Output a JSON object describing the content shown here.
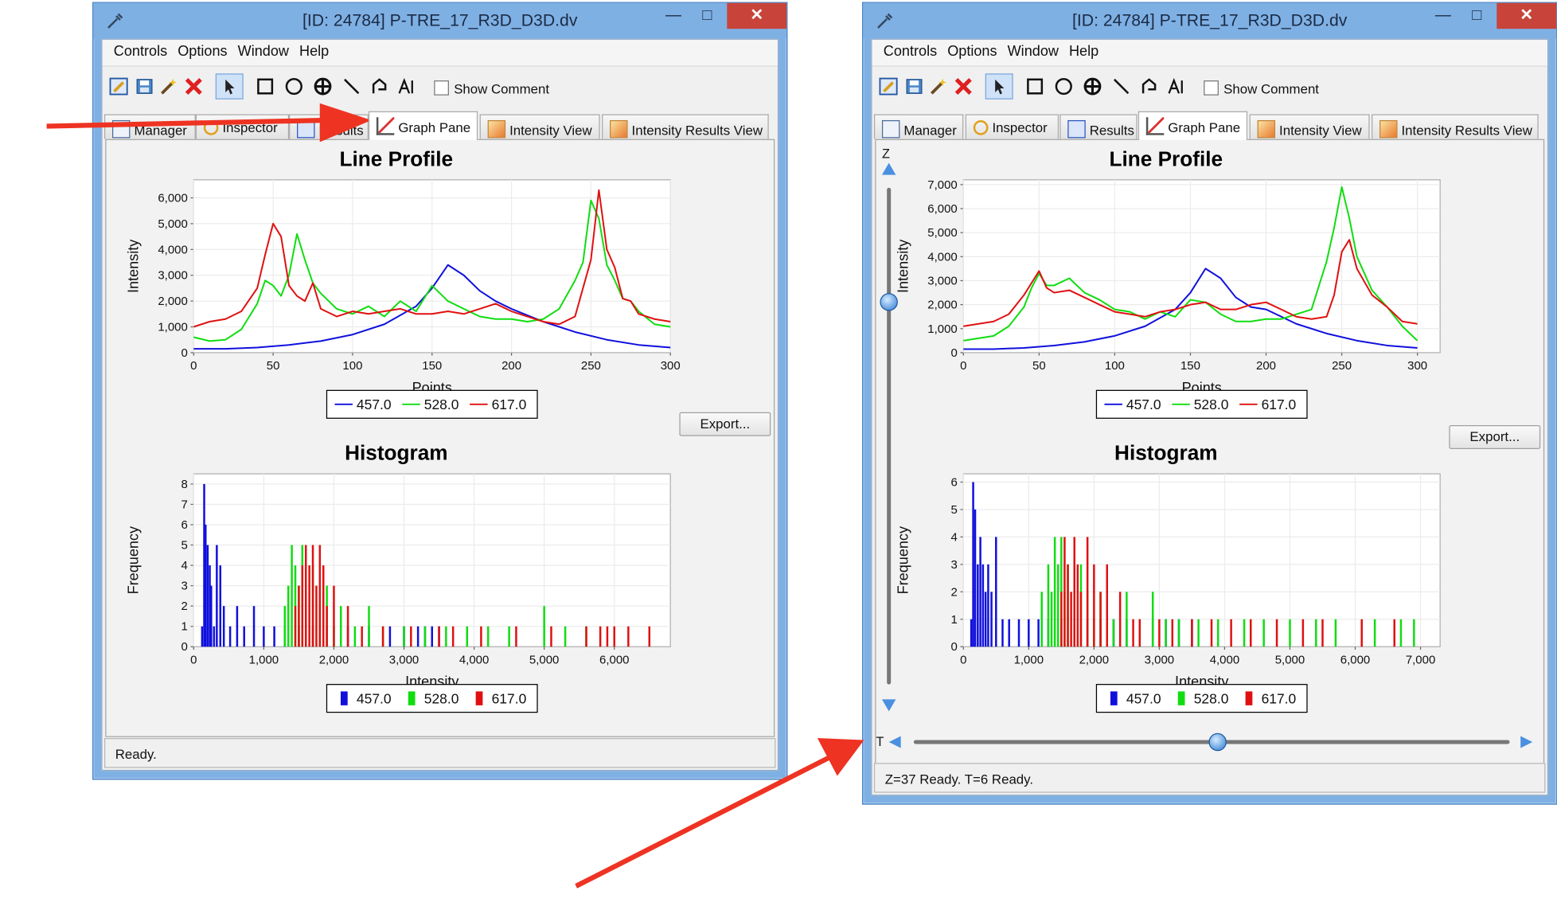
{
  "windows": [
    {
      "id": "left",
      "title": "[ID: 24784] P-TRE_17_R3D_D3D.dv",
      "menu": [
        "Controls",
        "Options",
        "Window",
        "Help"
      ],
      "show_comment_label": "Show Comment",
      "tabs": [
        {
          "label": "Manager",
          "active": false,
          "obscured": true
        },
        {
          "label": "Inspector",
          "active": false,
          "obscured": true
        },
        {
          "label": "Results",
          "active": false,
          "obscured": true
        },
        {
          "label": "Graph Pane",
          "active": true
        },
        {
          "label": "Intensity View",
          "active": false
        },
        {
          "label": "Intensity Results View",
          "active": false
        }
      ],
      "export_label": "Export...",
      "status": "Ready."
    },
    {
      "id": "right",
      "title": "[ID: 24784] P-TRE_17_R3D_D3D.dv",
      "menu": [
        "Controls",
        "Options",
        "Window",
        "Help"
      ],
      "show_comment_label": "Show Comment",
      "tabs": [
        {
          "label": "Manager",
          "active": false
        },
        {
          "label": "Inspector",
          "active": false
        },
        {
          "label": "Results",
          "active": false
        },
        {
          "label": "Graph Pane",
          "active": true
        },
        {
          "label": "Intensity View",
          "active": false
        },
        {
          "label": "Intensity Results View",
          "active": false
        }
      ],
      "export_label": "Export...",
      "z_label": "Z",
      "t_label": "T",
      "z_slider_fraction": 0.23,
      "t_slider_fraction": 0.51,
      "status": "Z=37  Ready. T=6 Ready."
    }
  ],
  "colors": {
    "series_457": "#1010dd",
    "series_528": "#10dd10",
    "series_617": "#e01010",
    "window_frame": "#7fb0e4",
    "close_button": "#c8443a",
    "annotation_arrow": "#ee3322"
  },
  "chart_data": [
    {
      "window": "left",
      "type": "line",
      "title": "Line Profile",
      "xlabel": "Points",
      "ylabel": "Intensity",
      "xlim": [
        0,
        300
      ],
      "ylim": [
        0,
        6700
      ],
      "xticks": [
        0,
        50,
        100,
        150,
        200,
        250,
        300
      ],
      "yticks": [
        0,
        1000,
        2000,
        3000,
        4000,
        5000,
        6000
      ],
      "xtick_labels": [
        "0",
        "50",
        "100",
        "150",
        "200",
        "250",
        "300"
      ],
      "ytick_labels": [
        "0",
        "1,000",
        "2,000",
        "3,000",
        "4,000",
        "5,000",
        "6,000"
      ],
      "legend_placement": "bottom",
      "series": [
        {
          "name": "457.0",
          "color": "#1010dd",
          "x": [
            0,
            20,
            40,
            60,
            80,
            100,
            120,
            140,
            150,
            160,
            170,
            180,
            190,
            200,
            220,
            240,
            260,
            280,
            300
          ],
          "y": [
            150,
            150,
            200,
            300,
            450,
            700,
            1100,
            1800,
            2500,
            3400,
            3000,
            2400,
            2000,
            1700,
            1200,
            800,
            500,
            300,
            200
          ]
        },
        {
          "name": "528.0",
          "color": "#10dd10",
          "x": [
            0,
            10,
            20,
            30,
            40,
            45,
            50,
            55,
            60,
            65,
            70,
            75,
            80,
            90,
            100,
            110,
            120,
            130,
            140,
            150,
            160,
            170,
            180,
            190,
            200,
            210,
            220,
            230,
            240,
            245,
            250,
            255,
            260,
            265,
            270,
            275,
            280,
            290,
            300
          ],
          "y": [
            600,
            450,
            500,
            900,
            1900,
            2800,
            2600,
            2200,
            3000,
            4600,
            3600,
            2700,
            2300,
            1700,
            1500,
            1800,
            1400,
            2000,
            1600,
            2600,
            2000,
            1700,
            1400,
            1300,
            1300,
            1200,
            1300,
            1700,
            2800,
            3500,
            5900,
            5200,
            3400,
            2800,
            2100,
            2000,
            1600,
            1100,
            1000
          ]
        },
        {
          "name": "617.0",
          "color": "#e01010",
          "x": [
            0,
            10,
            20,
            30,
            40,
            45,
            50,
            55,
            60,
            65,
            70,
            75,
            80,
            90,
            100,
            110,
            120,
            130,
            140,
            150,
            160,
            170,
            180,
            190,
            200,
            210,
            220,
            230,
            240,
            250,
            255,
            260,
            265,
            270,
            275,
            280,
            290,
            300
          ],
          "y": [
            1000,
            1200,
            1300,
            1600,
            2500,
            3800,
            5000,
            4500,
            2600,
            2200,
            2000,
            2700,
            1700,
            1400,
            1600,
            1500,
            1600,
            1700,
            1500,
            1500,
            1600,
            1500,
            1700,
            1900,
            1600,
            1400,
            1200,
            1100,
            1400,
            3600,
            6300,
            4000,
            3300,
            2100,
            2000,
            1500,
            1300,
            1200
          ]
        }
      ]
    },
    {
      "window": "left",
      "type": "bar",
      "title": "Histogram",
      "xlabel": "Intensity",
      "ylabel": "Frequency",
      "xlim": [
        0,
        6800
      ],
      "ylim": [
        0,
        8.5
      ],
      "xticks": [
        0,
        1000,
        2000,
        3000,
        4000,
        5000,
        6000
      ],
      "yticks": [
        0,
        1,
        2,
        3,
        4,
        5,
        6,
        7,
        8
      ],
      "xtick_labels": [
        "0",
        "1,000",
        "2,000",
        "3,000",
        "4,000",
        "5,000",
        "6,000"
      ],
      "ytick_labels": [
        "0",
        "1",
        "2",
        "3",
        "4",
        "5",
        "6",
        "7",
        "8"
      ],
      "legend_placement": "bottom",
      "series": [
        {
          "name": "457.0",
          "color": "#1010dd",
          "x": [
            120,
            150,
            170,
            200,
            230,
            250,
            290,
            330,
            380,
            430,
            520,
            620,
            720,
            860,
            1000,
            1150,
            1300,
            1500,
            1700,
            1900,
            2200,
            2500,
            2800,
            3000,
            3200,
            3300,
            3400,
            3500
          ],
          "y": [
            1,
            8,
            6,
            5,
            4,
            3,
            1,
            5,
            4,
            2,
            1,
            2,
            1,
            2,
            1,
            1,
            1,
            1,
            1,
            1,
            1,
            1,
            1,
            1,
            1,
            1,
            1,
            1
          ]
        },
        {
          "name": "528.0",
          "color": "#10dd10",
          "x": [
            1300,
            1350,
            1400,
            1450,
            1500,
            1550,
            1600,
            1700,
            1800,
            1900,
            2000,
            2100,
            2300,
            2500,
            2700,
            3000,
            3300,
            3600,
            3900,
            4200,
            4500,
            5000,
            5300,
            5600
          ],
          "y": [
            2,
            3,
            5,
            4,
            3,
            5,
            3,
            4,
            2,
            3,
            1,
            2,
            1,
            2,
            1,
            1,
            1,
            1,
            1,
            1,
            1,
            2,
            1,
            1
          ]
        },
        {
          "name": "617.0",
          "color": "#e01010",
          "x": [
            1450,
            1500,
            1550,
            1600,
            1650,
            1700,
            1750,
            1800,
            1850,
            1900,
            2000,
            2200,
            2400,
            2700,
            3100,
            3500,
            3700,
            4100,
            4600,
            5100,
            5600,
            5800,
            5900,
            6000,
            6200,
            6500
          ],
          "y": [
            2,
            3,
            4,
            5,
            4,
            5,
            3,
            5,
            4,
            2,
            3,
            2,
            1,
            1,
            1,
            1,
            1,
            1,
            1,
            1,
            1,
            1,
            1,
            1,
            1,
            1
          ]
        }
      ]
    },
    {
      "window": "right",
      "type": "line",
      "title": "Line Profile",
      "xlabel": "Points",
      "ylabel": "Intensity",
      "xlim": [
        0,
        315
      ],
      "ylim": [
        0,
        7200
      ],
      "xticks": [
        0,
        50,
        100,
        150,
        200,
        250,
        300
      ],
      "yticks": [
        0,
        1000,
        2000,
        3000,
        4000,
        5000,
        6000,
        7000
      ],
      "xtick_labels": [
        "0",
        "50",
        "100",
        "150",
        "200",
        "250",
        "300"
      ],
      "ytick_labels": [
        "0",
        "1,000",
        "2,000",
        "3,000",
        "4,000",
        "5,000",
        "6,000",
        "7,000"
      ],
      "legend_placement": "bottom",
      "series": [
        {
          "name": "457.0",
          "color": "#1010dd",
          "x": [
            0,
            20,
            40,
            60,
            80,
            100,
            120,
            140,
            150,
            160,
            170,
            180,
            190,
            200,
            220,
            240,
            260,
            280,
            300
          ],
          "y": [
            150,
            150,
            200,
            300,
            450,
            700,
            1100,
            1800,
            2500,
            3500,
            3100,
            2300,
            1900,
            1800,
            1200,
            800,
            500,
            300,
            200
          ]
        },
        {
          "name": "528.0",
          "color": "#10dd10",
          "x": [
            0,
            10,
            20,
            30,
            40,
            45,
            50,
            55,
            60,
            70,
            80,
            90,
            100,
            110,
            120,
            130,
            140,
            150,
            160,
            170,
            180,
            190,
            200,
            210,
            220,
            230,
            240,
            245,
            250,
            255,
            260,
            270,
            280,
            290,
            300
          ],
          "y": [
            500,
            600,
            700,
            1100,
            1900,
            2700,
            3300,
            2800,
            2800,
            3100,
            2500,
            2200,
            1800,
            1700,
            1400,
            1700,
            1500,
            2200,
            2100,
            1600,
            1300,
            1300,
            1400,
            1400,
            1600,
            1800,
            3800,
            5200,
            6900,
            5600,
            4000,
            2600,
            1900,
            1100,
            500
          ]
        },
        {
          "name": "617.0",
          "color": "#e01010",
          "x": [
            0,
            10,
            20,
            30,
            40,
            45,
            50,
            55,
            60,
            70,
            80,
            90,
            100,
            110,
            120,
            130,
            140,
            150,
            160,
            170,
            180,
            190,
            200,
            210,
            220,
            230,
            240,
            245,
            250,
            255,
            260,
            270,
            280,
            290,
            300
          ],
          "y": [
            1100,
            1200,
            1300,
            1600,
            2400,
            2900,
            3400,
            2700,
            2500,
            2600,
            2300,
            2000,
            1700,
            1600,
            1500,
            1700,
            1800,
            2000,
            2100,
            1800,
            1800,
            2000,
            2100,
            1800,
            1500,
            1400,
            1500,
            2400,
            4200,
            4700,
            3500,
            2400,
            1900,
            1300,
            1200
          ]
        }
      ]
    },
    {
      "window": "right",
      "type": "bar",
      "title": "Histogram",
      "xlabel": "Intensity",
      "ylabel": "Frequency",
      "xlim": [
        0,
        7300
      ],
      "ylim": [
        0,
        6.3
      ],
      "xticks": [
        0,
        1000,
        2000,
        3000,
        4000,
        5000,
        6000,
        7000
      ],
      "yticks": [
        0,
        1,
        2,
        3,
        4,
        5,
        6
      ],
      "xtick_labels": [
        "0",
        "1,000",
        "2,000",
        "3,000",
        "4,000",
        "5,000",
        "6,000",
        "7,000"
      ],
      "ytick_labels": [
        "0",
        "1",
        "2",
        "3",
        "4",
        "5",
        "6"
      ],
      "legend_placement": "bottom",
      "series": [
        {
          "name": "457.0",
          "color": "#1010dd",
          "x": [
            120,
            150,
            180,
            220,
            260,
            300,
            340,
            380,
            430,
            500,
            600,
            700,
            850,
            1000,
            1150,
            1300,
            1500,
            1700,
            1900,
            2100,
            2300,
            2500,
            2700,
            2900,
            3100,
            3300,
            3500
          ],
          "y": [
            1,
            6,
            5,
            3,
            4,
            3,
            2,
            3,
            2,
            4,
            1,
            1,
            1,
            1,
            1,
            1,
            1,
            1,
            1,
            1,
            1,
            1,
            1,
            1,
            1,
            1,
            1
          ]
        },
        {
          "name": "528.0",
          "color": "#10dd10",
          "x": [
            1200,
            1300,
            1350,
            1400,
            1450,
            1500,
            1550,
            1600,
            1700,
            1800,
            1900,
            2000,
            2100,
            2300,
            2500,
            2700,
            2900,
            3100,
            3300,
            3600,
            3900,
            4300,
            4600,
            5000,
            5400,
            5700,
            6300,
            6700,
            6900
          ],
          "y": [
            2,
            3,
            2,
            4,
            3,
            4,
            2,
            3,
            2,
            3,
            2,
            1,
            2,
            1,
            2,
            1,
            2,
            1,
            1,
            1,
            1,
            1,
            1,
            1,
            1,
            1,
            1,
            1,
            1
          ]
        },
        {
          "name": "617.0",
          "color": "#e01010",
          "x": [
            1500,
            1550,
            1600,
            1650,
            1700,
            1750,
            1800,
            1900,
            2000,
            2100,
            2200,
            2400,
            2600,
            2700,
            3000,
            3200,
            3500,
            3800,
            4100,
            4400,
            4800,
            5200,
            5500,
            6100,
            6600
          ],
          "y": [
            2,
            4,
            3,
            2,
            4,
            3,
            2,
            4,
            3,
            2,
            3,
            2,
            1,
            1,
            1,
            1,
            1,
            1,
            1,
            1,
            1,
            1,
            1,
            1,
            1
          ]
        }
      ]
    }
  ]
}
